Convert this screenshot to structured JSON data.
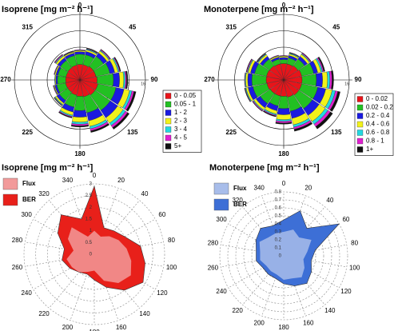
{
  "chart_data": [
    {
      "type": "windrose",
      "title": "Isoprene [mg m⁻² h⁻¹]",
      "x": [
        0,
        22.5,
        45,
        67.5,
        90,
        112.5,
        135,
        157.5,
        180,
        202.5,
        225,
        247.5,
        270,
        292.5,
        315,
        337.5
      ],
      "xlim": [
        0,
        360
      ],
      "xticks": [
        0,
        45,
        90,
        135,
        180,
        225,
        270,
        315
      ],
      "ylim": [
        0,
        16
      ],
      "yticks": [
        4,
        8,
        12,
        16
      ],
      "series": [
        {
          "name": "0 - 0.05",
          "color": "#e8141a",
          "values": [
            3.8,
            3.8,
            4,
            4,
            4.2,
            4.5,
            4.5,
            4.2,
            4,
            3.8,
            3.6,
            3.6,
            3.5,
            3.5,
            3.6,
            3.7
          ]
        },
        {
          "name": "0.05 - 1",
          "color": "#22c022",
          "values": [
            2.5,
            2.5,
            3,
            3.5,
            4,
            4.5,
            4.5,
            4,
            3.5,
            3,
            2.5,
            2.2,
            2,
            2,
            2.2,
            2.4
          ]
        },
        {
          "name": "1 - 2",
          "color": "#1a1ae0",
          "values": [
            0.6,
            0.8,
            1,
            1.2,
            1.5,
            2,
            2.2,
            2,
            1.6,
            1.2,
            0.8,
            0.5,
            0.4,
            0.5,
            0.8,
            0.6
          ]
        },
        {
          "name": "2 - 3",
          "color": "#f2f21a",
          "values": [
            0.3,
            0.4,
            0.6,
            0.8,
            1,
            1.4,
            1.6,
            1.4,
            1.2,
            0.8,
            0.4,
            0.2,
            0.2,
            0.3,
            0.5,
            0.3
          ]
        },
        {
          "name": "3 - 4",
          "color": "#22d8e0",
          "values": [
            0.1,
            0.2,
            0.2,
            0.3,
            0.4,
            0.6,
            0.7,
            0.6,
            0.5,
            0.3,
            0.2,
            0.1,
            0.1,
            0.1,
            0.2,
            0.1
          ]
        },
        {
          "name": "4 - 5",
          "color": "#e020d0",
          "values": [
            0.1,
            0.1,
            0.2,
            0.2,
            0.3,
            0.5,
            0.6,
            0.5,
            0.4,
            0.2,
            0.1,
            0.1,
            0,
            0.1,
            0.2,
            0.1
          ]
        },
        {
          "name": "5+",
          "color": "#111111",
          "values": [
            0,
            0.1,
            0.1,
            0.2,
            0.3,
            0.5,
            0.5,
            0.4,
            0.3,
            0.2,
            0.1,
            0,
            0,
            0,
            0.1,
            0.1
          ]
        }
      ]
    },
    {
      "type": "windrose",
      "title": "Monoterpene [mg m⁻² h⁻¹]",
      "x": [
        0,
        22.5,
        45,
        67.5,
        90,
        112.5,
        135,
        157.5,
        180,
        202.5,
        225,
        247.5,
        270,
        292.5,
        315,
        337.5
      ],
      "xlim": [
        0,
        360
      ],
      "xticks": [
        0,
        45,
        90,
        135,
        180,
        225,
        270,
        315
      ],
      "ylim": [
        0,
        16
      ],
      "yticks": [
        4,
        8,
        12,
        16
      ],
      "series": [
        {
          "name": "0 - 0.02",
          "color": "#e8141a",
          "values": [
            4,
            4,
            4.2,
            4.5,
            4.5,
            4.5,
            4.5,
            4.3,
            4,
            4,
            4,
            4.2,
            4.3,
            4.3,
            4.2,
            4
          ]
        },
        {
          "name": "0.02 - 0.2",
          "color": "#22c022",
          "values": [
            1,
            1.5,
            2,
            3,
            3.5,
            4,
            4,
            3.5,
            3,
            2.5,
            3,
            3.5,
            3.5,
            3,
            2,
            1.2
          ]
        },
        {
          "name": "0.2 - 0.4",
          "color": "#1a1ae0",
          "values": [
            0.5,
            0.6,
            0.8,
            1,
            1.5,
            2,
            2,
            1.8,
            1.5,
            1.2,
            1.2,
            1.2,
            1,
            1,
            0.8,
            0.5
          ]
        },
        {
          "name": "0.4 - 0.6",
          "color": "#f2f21a",
          "values": [
            0.3,
            0.4,
            0.6,
            0.8,
            1.2,
            1.6,
            1.8,
            1.6,
            1.2,
            0.8,
            0.6,
            0.5,
            0.5,
            0.6,
            0.5,
            0.3
          ]
        },
        {
          "name": "0.6 - 0.8",
          "color": "#22d8e0",
          "values": [
            0.1,
            0.2,
            0.2,
            0.4,
            0.6,
            0.8,
            0.8,
            0.6,
            0.4,
            0.3,
            0.2,
            0.2,
            0.2,
            0.2,
            0.2,
            0.1
          ]
        },
        {
          "name": "0.8 - 1",
          "color": "#e020d0",
          "values": [
            0.1,
            0.1,
            0.2,
            0.3,
            0.5,
            0.6,
            0.7,
            0.5,
            0.4,
            0.2,
            0.2,
            0.1,
            0.1,
            0.2,
            0.1,
            0.1
          ]
        },
        {
          "name": "1+",
          "color": "#111111",
          "values": [
            0,
            0.1,
            0.1,
            0.3,
            0.4,
            0.6,
            0.7,
            0.5,
            0.3,
            0.2,
            0.1,
            0.1,
            0,
            0.1,
            0.1,
            0
          ]
        }
      ]
    },
    {
      "type": "radar",
      "title": "Isoprene [mg m⁻² h⁻¹]",
      "x": [
        0,
        20,
        40,
        60,
        80,
        100,
        120,
        140,
        160,
        180,
        200,
        220,
        240,
        260,
        280,
        300,
        320,
        340
      ],
      "xlim": [
        0,
        360
      ],
      "ylim": [
        0,
        3
      ],
      "yticks": [
        0,
        0.5,
        1,
        1.5,
        2,
        2.5,
        3
      ],
      "series": [
        {
          "name": "Flux",
          "color": "#f29a9a",
          "values": [
            1.0,
            0.8,
            1.0,
            1.2,
            1.4,
            1.6,
            1.8,
            1.6,
            1.2,
            0.7,
            0.8,
            1.0,
            1.1,
            1.2,
            0.9,
            1.3,
            1.5,
            0.8
          ]
        },
        {
          "name": "BER",
          "color": "#e8201a",
          "values": [
            2.9,
            1.2,
            1.3,
            1.5,
            2.0,
            2.2,
            2.4,
            2.0,
            1.5,
            1.1,
            0.9,
            1.0,
            1.2,
            1.4,
            1.3,
            1.8,
            2.2,
            1.6
          ]
        }
      ]
    },
    {
      "type": "radar",
      "title": "Monoterpene [mg m⁻² h⁻¹]",
      "x": [
        0,
        20,
        40,
        60,
        80,
        100,
        120,
        140,
        160,
        180,
        200,
        220,
        240,
        260,
        280,
        300,
        320,
        340
      ],
      "xlim": [
        0,
        360
      ],
      "ylim": [
        0,
        0.8
      ],
      "yticks": [
        0,
        0.1,
        0.2,
        0.3,
        0.4,
        0.5,
        0.6,
        0.7,
        0.8
      ],
      "series": [
        {
          "name": "Flux",
          "color": "#a8bdea",
          "values": [
            0.3,
            0.35,
            0.3,
            0.4,
            0.3,
            0.25,
            0.3,
            0.35,
            0.3,
            0.3,
            0.25,
            0.25,
            0.25,
            0.3,
            0.3,
            0.35,
            0.3,
            0.3
          ]
        },
        {
          "name": "BER",
          "color": "#3d6fd6",
          "values": [
            0.45,
            0.6,
            0.45,
            0.8,
            0.4,
            0.35,
            0.4,
            0.45,
            0.4,
            0.35,
            0.3,
            0.3,
            0.3,
            0.35,
            0.35,
            0.4,
            0.45,
            0.4
          ]
        }
      ]
    }
  ]
}
